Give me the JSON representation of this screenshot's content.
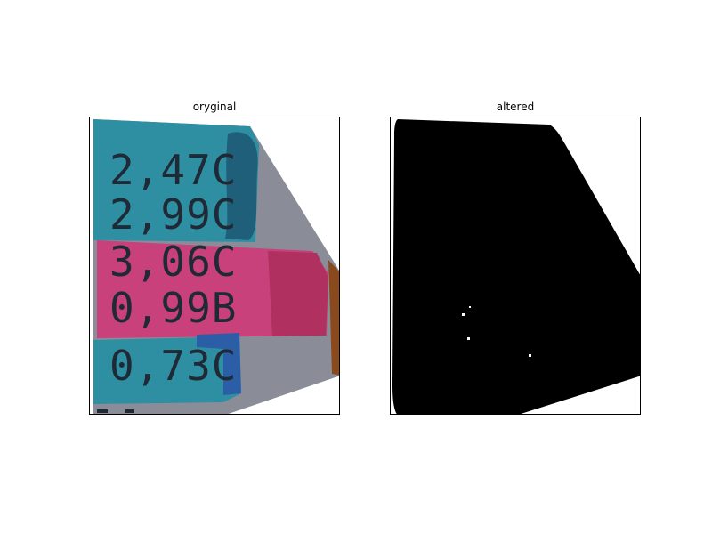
{
  "figure": {
    "panels": [
      {
        "title": "oryginal",
        "image": {
          "kind": "photo of handwritten receipt strip with colored highlighter bands",
          "lines": [
            "2,47C",
            "2,99C",
            "3,06C",
            "0,99B",
            "0,73C"
          ],
          "band_colors": {
            "teal": "#2e8fa3",
            "pink": "#c8417a",
            "dark_teal": "#1f5f7a",
            "paper": "#8a8d98",
            "edge_brown": "#8a4a1e"
          }
        }
      },
      {
        "title": "altered",
        "image": {
          "kind": "binary mask",
          "foreground_color": "#000000",
          "background_color": "#ffffff"
        }
      }
    ]
  }
}
